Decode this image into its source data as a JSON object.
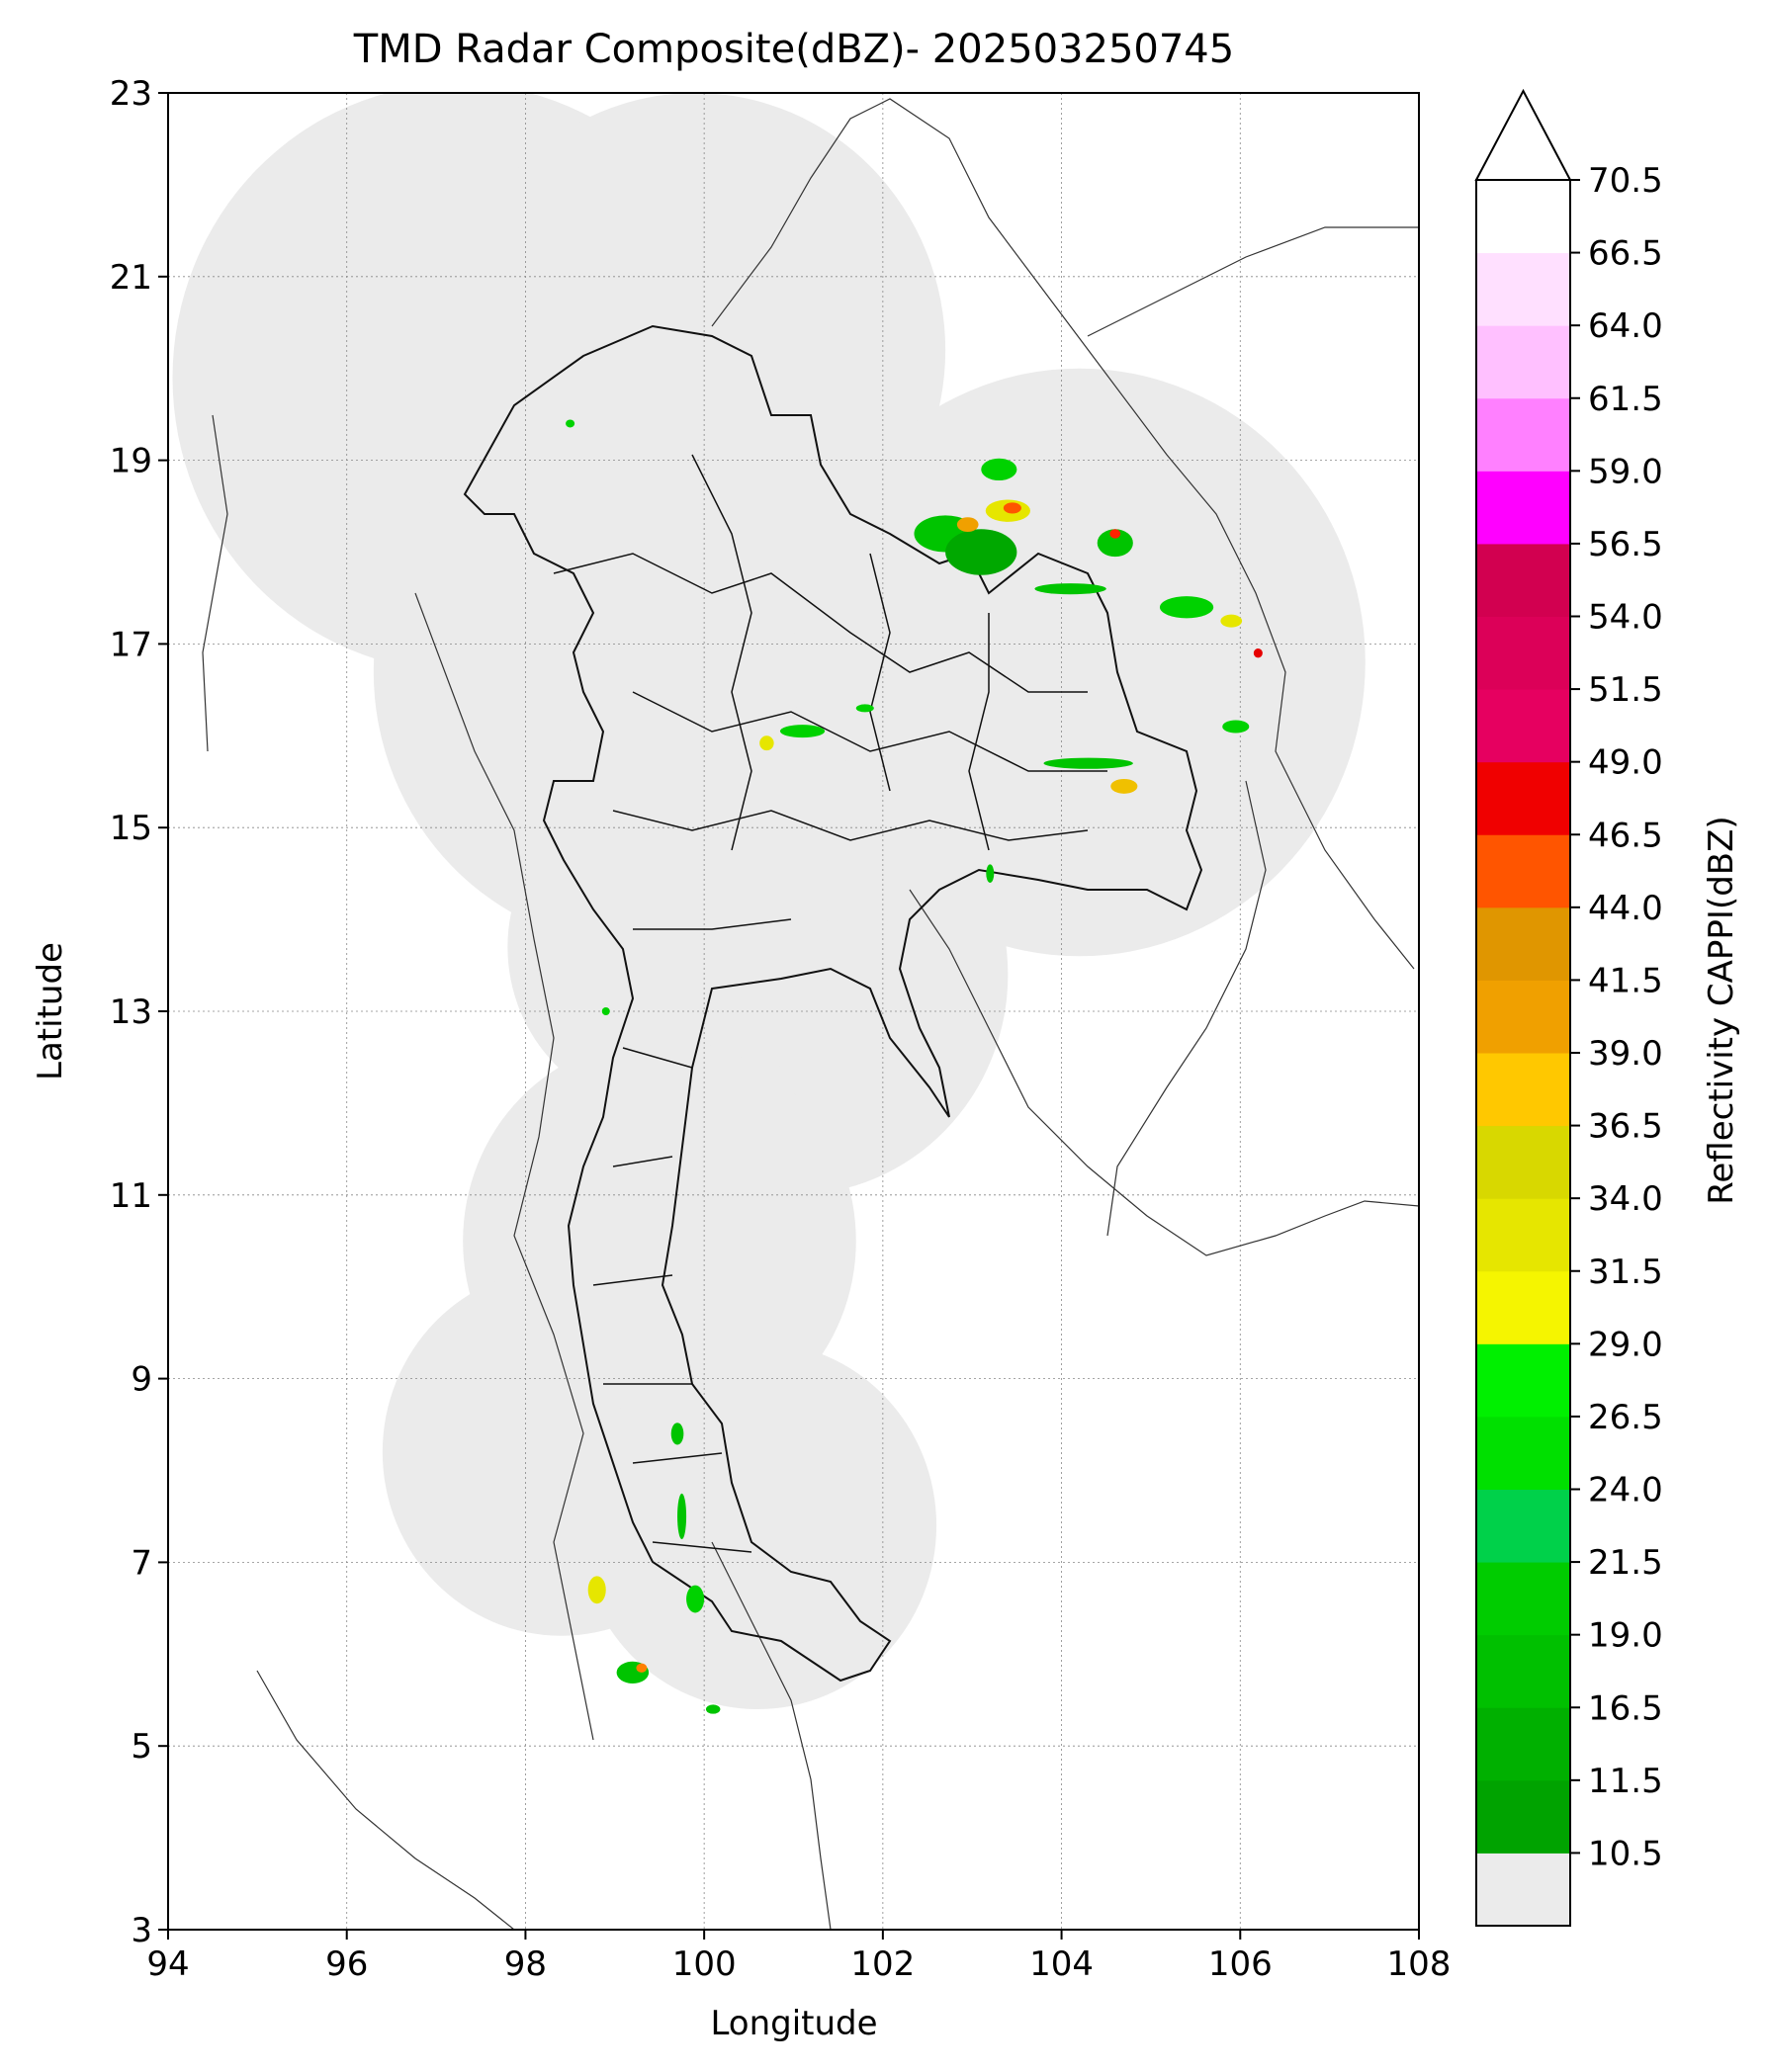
{
  "title": "TMD Radar Composite(dBZ)- 202503250745",
  "map": {
    "xlabel": "Longitude",
    "ylabel": "Latitude",
    "lon_range": [
      94,
      108
    ],
    "lat_range": [
      3,
      23
    ],
    "lon_ticks": [
      "94",
      "96",
      "98",
      "100",
      "102",
      "104",
      "106",
      "108"
    ],
    "lat_ticks": [
      "3",
      "5",
      "7",
      "9",
      "11",
      "13",
      "15",
      "17",
      "19",
      "21",
      "23"
    ],
    "grid": true,
    "coverage_color": "#ebebeb",
    "radar_sites": [
      {
        "lon": 97.25,
        "lat": 19.9,
        "r_deg": 3.2
      },
      {
        "lon": 99.9,
        "lat": 20.2,
        "r_deg": 2.8
      },
      {
        "lon": 99.3,
        "lat": 16.7,
        "r_deg": 3.0
      },
      {
        "lon": 101.2,
        "lat": 17.0,
        "r_deg": 2.9
      },
      {
        "lon": 104.2,
        "lat": 16.8,
        "r_deg": 3.2
      },
      {
        "lon": 101.0,
        "lat": 13.4,
        "r_deg": 2.4
      },
      {
        "lon": 99.6,
        "lat": 13.7,
        "r_deg": 1.8
      },
      {
        "lon": 99.5,
        "lat": 10.5,
        "r_deg": 2.2
      },
      {
        "lon": 98.4,
        "lat": 8.2,
        "r_deg": 2.0
      },
      {
        "lon": 100.6,
        "lat": 7.4,
        "r_deg": 2.0
      }
    ],
    "echoes": [
      {
        "lon": 102.7,
        "lat": 18.2,
        "rx": 0.35,
        "ry": 0.2,
        "color": "#00c400"
      },
      {
        "lon": 103.1,
        "lat": 18.0,
        "rx": 0.4,
        "ry": 0.25,
        "color": "#00a800"
      },
      {
        "lon": 103.4,
        "lat": 18.45,
        "rx": 0.25,
        "ry": 0.12,
        "color": "#e6e600"
      },
      {
        "lon": 103.45,
        "lat": 18.48,
        "rx": 0.1,
        "ry": 0.06,
        "color": "#ff5500"
      },
      {
        "lon": 103.3,
        "lat": 18.9,
        "rx": 0.2,
        "ry": 0.12,
        "color": "#00d200"
      },
      {
        "lon": 102.95,
        "lat": 18.3,
        "rx": 0.12,
        "ry": 0.08,
        "color": "#f0a000"
      },
      {
        "lon": 104.1,
        "lat": 17.6,
        "rx": 0.4,
        "ry": 0.06,
        "color": "#00c400"
      },
      {
        "lon": 104.6,
        "lat": 18.1,
        "rx": 0.2,
        "ry": 0.15,
        "color": "#00c400"
      },
      {
        "lon": 104.6,
        "lat": 18.2,
        "rx": 0.06,
        "ry": 0.05,
        "color": "#ff2200"
      },
      {
        "lon": 105.4,
        "lat": 17.4,
        "rx": 0.3,
        "ry": 0.12,
        "color": "#00d200"
      },
      {
        "lon": 105.9,
        "lat": 17.25,
        "rx": 0.12,
        "ry": 0.07,
        "color": "#e6e600"
      },
      {
        "lon": 106.2,
        "lat": 16.9,
        "rx": 0.05,
        "ry": 0.05,
        "color": "#e60000"
      },
      {
        "lon": 105.95,
        "lat": 16.1,
        "rx": 0.15,
        "ry": 0.07,
        "color": "#00d200"
      },
      {
        "lon": 104.3,
        "lat": 15.7,
        "rx": 0.5,
        "ry": 0.06,
        "color": "#00c400"
      },
      {
        "lon": 104.7,
        "lat": 15.45,
        "rx": 0.15,
        "ry": 0.08,
        "color": "#f0c000"
      },
      {
        "lon": 101.1,
        "lat": 16.05,
        "rx": 0.25,
        "ry": 0.07,
        "color": "#00d200"
      },
      {
        "lon": 100.7,
        "lat": 15.92,
        "rx": 0.08,
        "ry": 0.08,
        "color": "#e6e600"
      },
      {
        "lon": 101.8,
        "lat": 16.3,
        "rx": 0.1,
        "ry": 0.04,
        "color": "#00d200"
      },
      {
        "lon": 99.7,
        "lat": 8.4,
        "rx": 0.07,
        "ry": 0.12,
        "color": "#00c400"
      },
      {
        "lon": 99.75,
        "lat": 7.5,
        "rx": 0.05,
        "ry": 0.25,
        "color": "#00c400"
      },
      {
        "lon": 98.8,
        "lat": 6.7,
        "rx": 0.1,
        "ry": 0.15,
        "color": "#e6e600"
      },
      {
        "lon": 99.2,
        "lat": 5.8,
        "rx": 0.18,
        "ry": 0.12,
        "color": "#00c400"
      },
      {
        "lon": 99.3,
        "lat": 5.85,
        "rx": 0.06,
        "ry": 0.05,
        "color": "#ff8000"
      },
      {
        "lon": 100.1,
        "lat": 5.4,
        "rx": 0.08,
        "ry": 0.05,
        "color": "#00c400"
      },
      {
        "lon": 99.9,
        "lat": 6.6,
        "rx": 0.1,
        "ry": 0.15,
        "color": "#00d200"
      },
      {
        "lon": 98.9,
        "lat": 13.0,
        "rx": 0.03,
        "ry": 0.03,
        "color": "#00d200"
      },
      {
        "lon": 98.5,
        "lat": 19.4,
        "rx": 0.05,
        "ry": 0.04,
        "color": "#00d200"
      },
      {
        "lon": 103.2,
        "lat": 14.5,
        "rx": 0.04,
        "ry": 0.1,
        "color": "#00c400"
      }
    ]
  },
  "colorbar": {
    "label": "Reflectivity CAPPI(dBZ)",
    "under_color": "#ebebeb",
    "extend": "max",
    "tick_labels": [
      "10.5",
      "11.5",
      "16.5",
      "19.0",
      "21.5",
      "24.0",
      "26.5",
      "29.0",
      "31.5",
      "34.0",
      "36.5",
      "39.0",
      "41.5",
      "44.0",
      "46.5",
      "49.0",
      "51.5",
      "54.0",
      "56.5",
      "59.0",
      "61.5",
      "64.0",
      "66.5",
      "70.5"
    ],
    "segments": [
      {
        "color": "#00a300"
      },
      {
        "color": "#00b000"
      },
      {
        "color": "#00c000"
      },
      {
        "color": "#00cc00"
      },
      {
        "color": "#00d14a"
      },
      {
        "color": "#00e000"
      },
      {
        "color": "#00f000"
      },
      {
        "color": "#f5f500"
      },
      {
        "color": "#e6e600"
      },
      {
        "color": "#d8d800"
      },
      {
        "color": "#ffc800"
      },
      {
        "color": "#f0a000"
      },
      {
        "color": "#e09600"
      },
      {
        "color": "#ff5500"
      },
      {
        "color": "#f00000"
      },
      {
        "color": "#e60060"
      },
      {
        "color": "#dc0058"
      },
      {
        "color": "#d20050"
      },
      {
        "color": "#ff00ff"
      },
      {
        "color": "#ff80ff"
      },
      {
        "color": "#ffc0ff"
      },
      {
        "color": "#ffe0ff"
      },
      {
        "color": "#ffffff"
      }
    ]
  }
}
